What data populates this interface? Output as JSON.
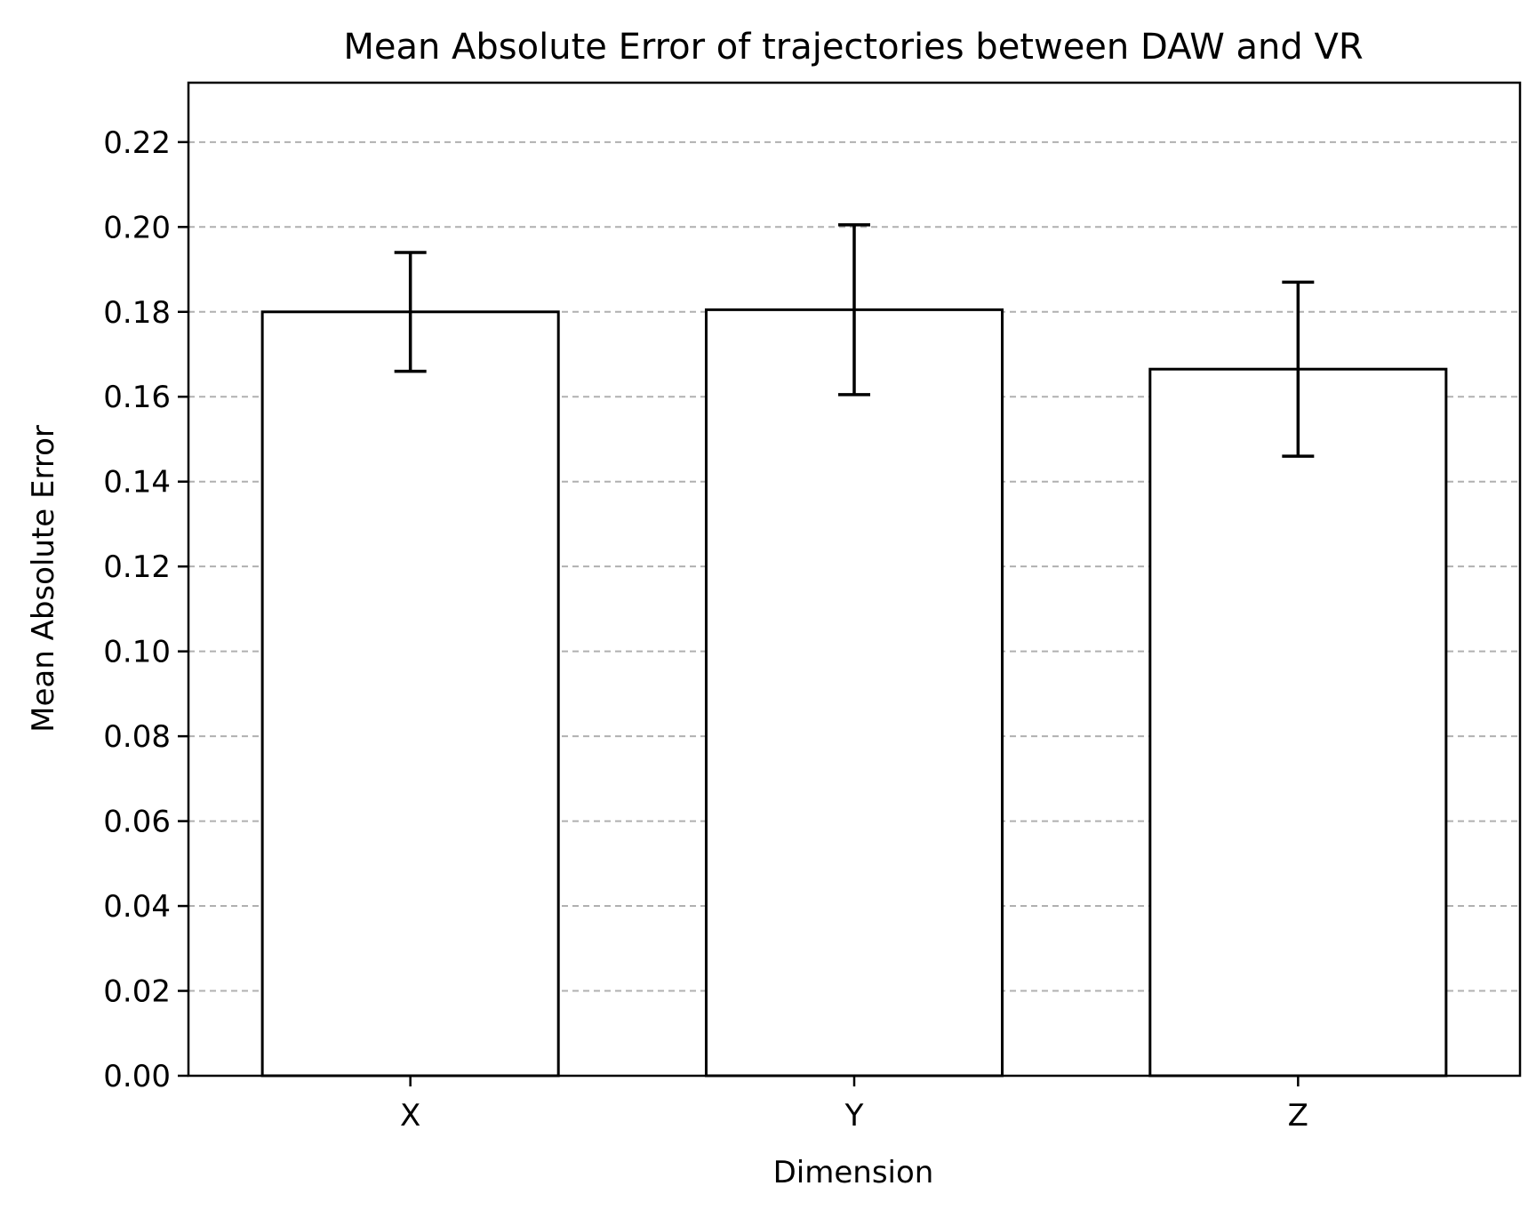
{
  "chart_data": {
    "type": "bar",
    "title": "Mean Absolute Error of trajectories between DAW and VR",
    "xlabel": "Dimension",
    "ylabel": "Mean Absolute Error",
    "categories": [
      "X",
      "Y",
      "Z"
    ],
    "values": [
      0.18,
      0.1805,
      0.1665
    ],
    "error": [
      0.014,
      0.02,
      0.0205
    ],
    "ylim": [
      0,
      0.234
    ],
    "yticks": [
      0.0,
      0.02,
      0.04,
      0.06,
      0.08,
      0.1,
      0.12,
      0.14,
      0.16,
      0.18,
      0.2,
      0.22
    ],
    "ytick_labels": [
      "0.00",
      "0.02",
      "0.04",
      "0.06",
      "0.08",
      "0.10",
      "0.12",
      "0.14",
      "0.16",
      "0.18",
      "0.20",
      "0.22"
    ],
    "grid": "y-dashed",
    "bar_fill": "#ffffff",
    "bar_edge": "#000000",
    "grid_color": "#b0b0b0"
  }
}
